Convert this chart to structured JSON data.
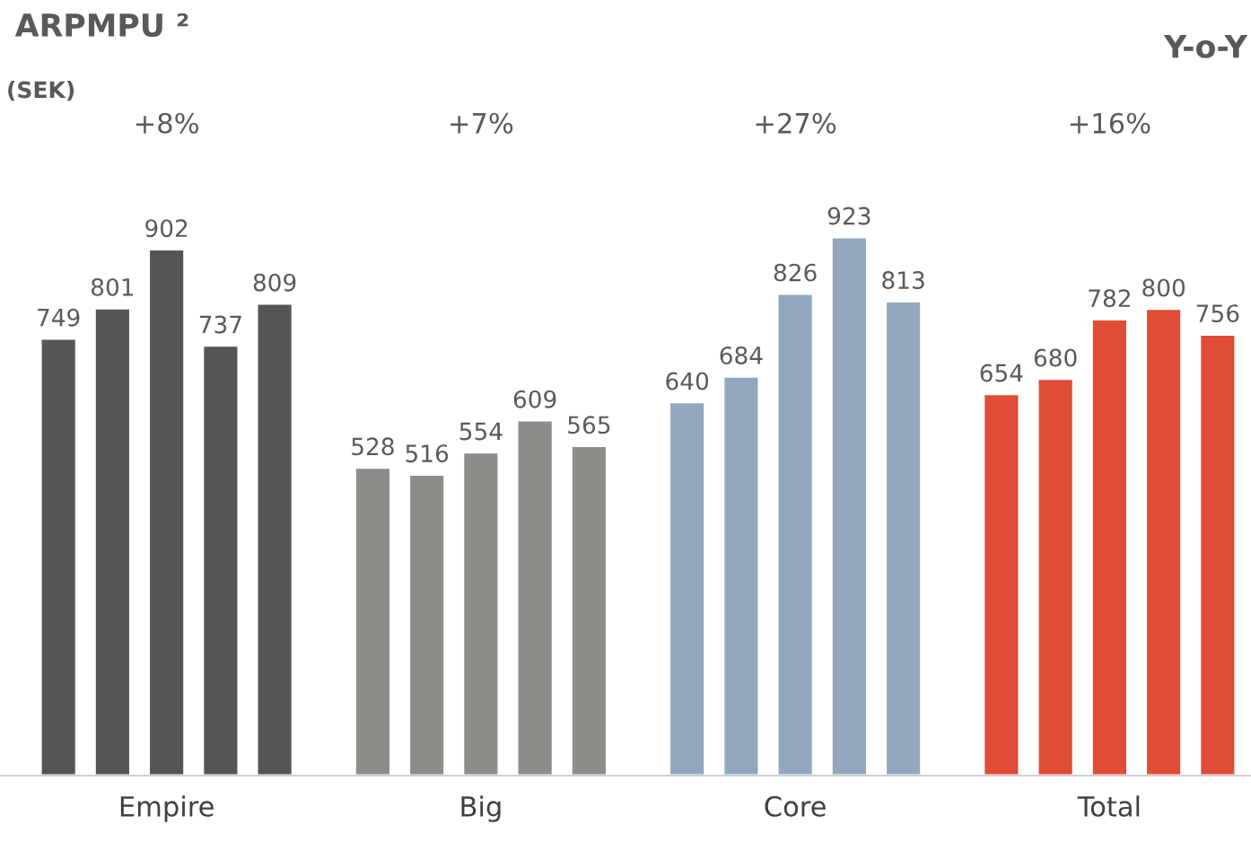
{
  "chart_data": {
    "type": "bar",
    "title": "ARPMPU ²",
    "subtitle": "(SEK)",
    "categories": [
      "Empire",
      "Big",
      "Core",
      "Total"
    ],
    "series": [
      {
        "colors": [
          "#555553",
          "#8c8d88",
          "#93a8bf",
          "#e04c36"
        ],
        "values": [
          749,
          528,
          640,
          654
        ]
      },
      {
        "colors": [
          "#555553",
          "#8c8d88",
          "#93a8bf",
          "#e04c36"
        ],
        "values": [
          801,
          516,
          684,
          680
        ]
      },
      {
        "colors": [
          "#555553",
          "#8c8d88",
          "#93a8bf",
          "#e04c36"
        ],
        "values": [
          902,
          554,
          826,
          782
        ]
      },
      {
        "colors": [
          "#555553",
          "#8c8d88",
          "#93a8bf",
          "#e04c36"
        ],
        "values": [
          737,
          609,
          923,
          800
        ]
      },
      {
        "colors": [
          "#555553",
          "#8c8d88",
          "#93a8bf",
          "#e04c36"
        ],
        "values": [
          809,
          565,
          813,
          756
        ]
      }
    ],
    "annotations": [
      "Y-o-Y",
      "+8%",
      "+7%",
      "+27%",
      "+16%"
    ],
    "data_labels": true,
    "tick_labels": "x",
    "grid": false,
    "legend": false
  }
}
